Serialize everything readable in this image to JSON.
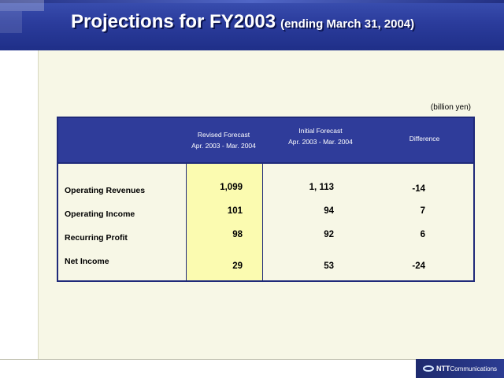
{
  "header": {
    "title": "Projections for FY2003",
    "subtitle": "(ending March 31, 2004)"
  },
  "unit": "(billion yen)",
  "table": {
    "columns": [
      {
        "line1": "Revised Forecast",
        "line2": "Apr. 2003 - Mar. 2004"
      },
      {
        "line1": "Initial Forecast",
        "line2": "Apr. 2003 - Mar. 2004"
      },
      {
        "line1": "Difference",
        "line2": ""
      }
    ],
    "rows": [
      {
        "label": "Operating Revenues",
        "revised": "1,099",
        "initial": "1, 113",
        "difference": "-14"
      },
      {
        "label": "Operating Income",
        "revised": "101",
        "initial": "94",
        "difference": "7"
      },
      {
        "label": "Recurring Profit",
        "revised": "98",
        "initial": "92",
        "difference": "6"
      },
      {
        "label": "Net Income",
        "revised": "29",
        "initial": "53",
        "difference": "-24"
      }
    ]
  },
  "logo": {
    "brand": "NTT",
    "text": "Communications"
  },
  "colors": {
    "header_blue": "#2b3c9c",
    "table_header": "#2f3c9a",
    "highlight": "#fbfbb0",
    "background": "#f7f7e6"
  }
}
